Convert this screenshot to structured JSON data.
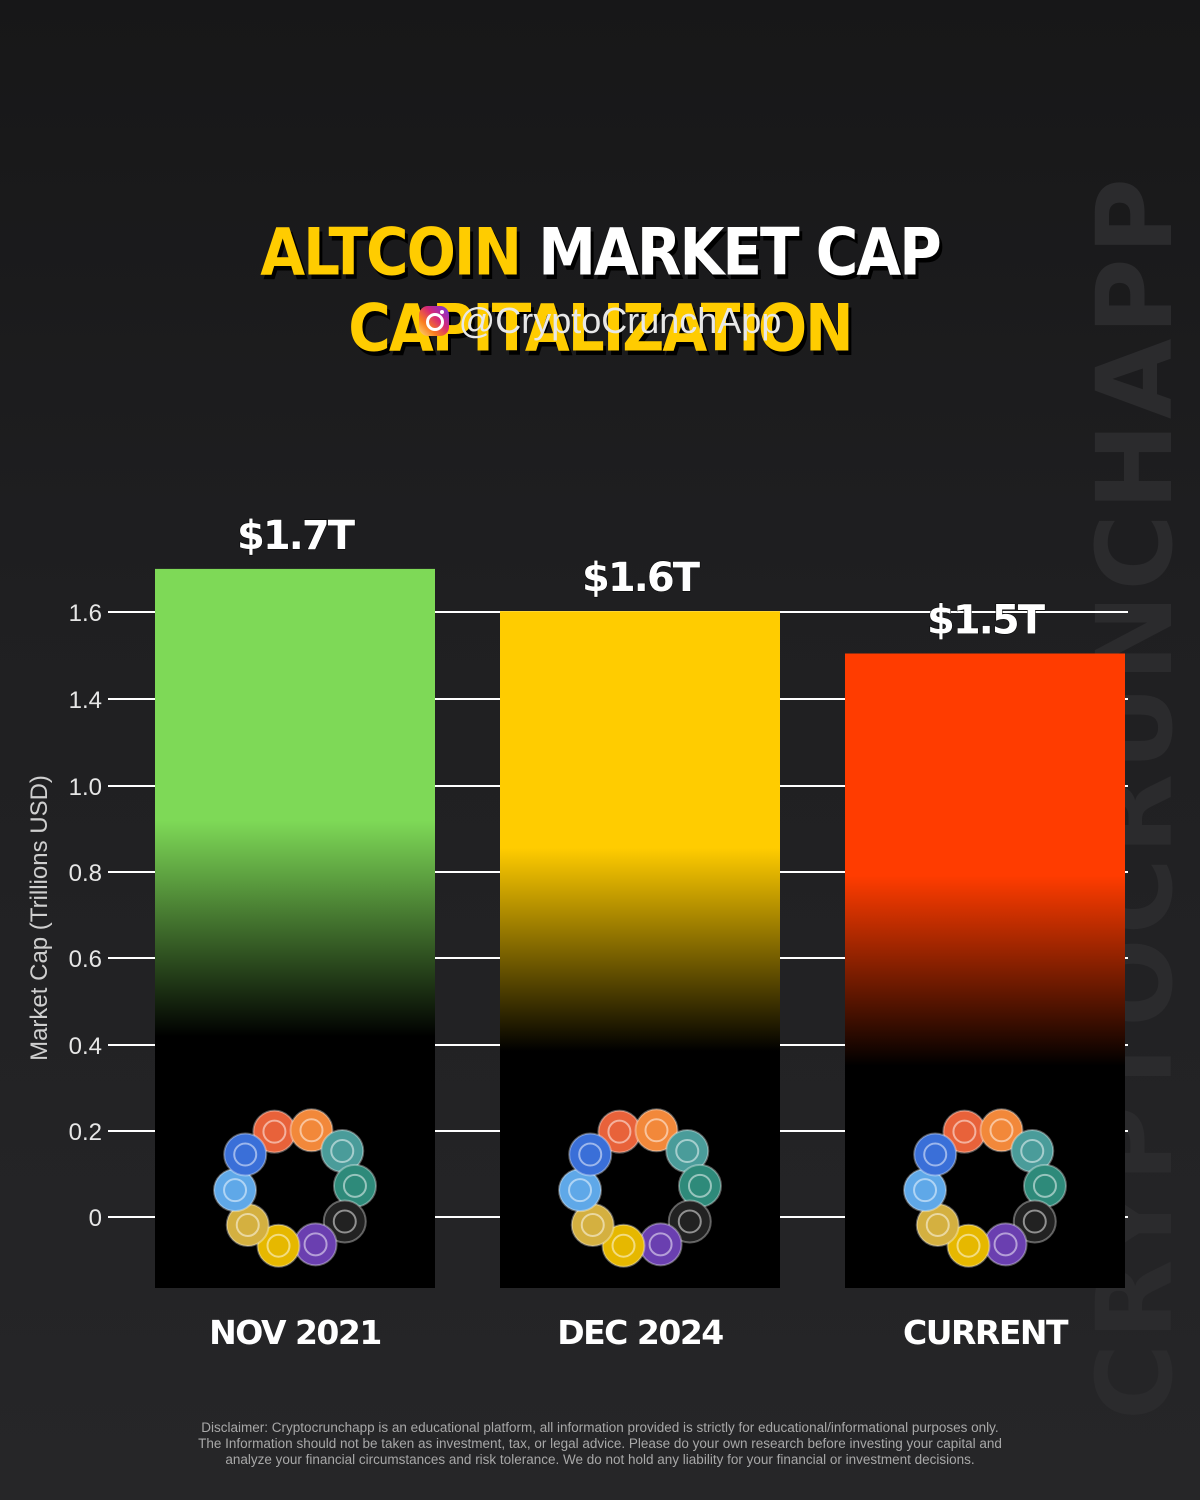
{
  "header": {
    "title_part1": "ALTCOIN",
    "title_part2": "MARKET CAP",
    "title_part3": "CAPITALIZATION",
    "handle": "@CryptoCrunchApp"
  },
  "watermark": "CRYPTOCRUNCHAPP",
  "colors": {
    "accent_yellow": "#ffcc00",
    "bar_green": "#7ed957",
    "bar_yellow": "#ffcc00",
    "bar_red": "#ff3c00",
    "background": "#1f1f21"
  },
  "chart_data": {
    "type": "bar",
    "categories": [
      "NOV 2021",
      "DEC 2024",
      "CURRENT"
    ],
    "values": [
      1.7,
      1.6,
      1.5
    ],
    "data_labels": [
      "$1.7T",
      "$1.6T",
      "$1.5T"
    ],
    "colors": [
      "#7ed957",
      "#ffcc00",
      "#ff3c00"
    ],
    "ylabel": "Market Cap (Trillions USD)",
    "y_ticks": [
      0,
      0.2,
      0.4,
      0.6,
      0.8,
      1.0,
      1.4,
      1.6
    ],
    "grid": true,
    "legend": "none"
  },
  "disclaimer": [
    "Disclaimer: Cryptocrunchapp is an educational platform, all information provided is strictly for educational/informational purposes only.",
    "The Information should not be taken as investment, tax, or legal advice. Please do your own research before investing your capital and",
    "analyze your financial circumstances and risk tolerance. We do not hold any liability for your financial or investment decisions."
  ]
}
